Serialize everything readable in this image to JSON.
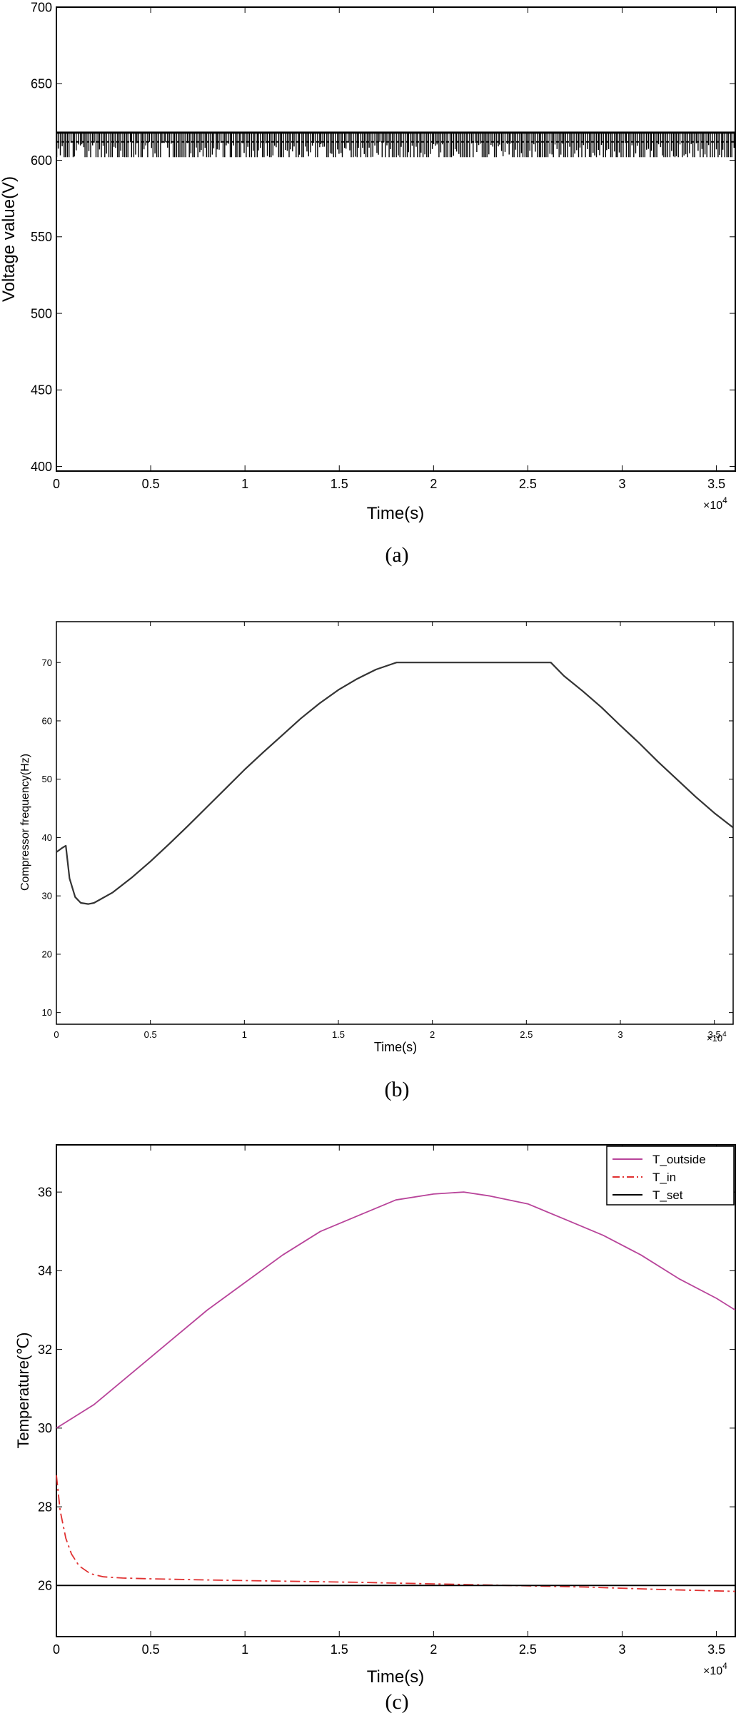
{
  "chart_data": [
    {
      "type": "line",
      "panel": "(a)",
      "caption": "(a)",
      "xlabel": "Time(s)",
      "ylabel": "Voltage value(V)",
      "x_exponent": "×10",
      "x_exponent_power": "4",
      "xlim": [
        0,
        3.6
      ],
      "ylim": [
        397,
        700
      ],
      "xticks": [
        0,
        0.5,
        1,
        1.5,
        2,
        2.5,
        3,
        3.5
      ],
      "xtick_labels": [
        "0",
        "0.5",
        "1",
        "1.5",
        "2",
        "2.5",
        "3",
        "3.5"
      ],
      "yticks": [
        400,
        450,
        500,
        550,
        600,
        650,
        700
      ],
      "ytick_labels": [
        "400",
        "450",
        "500",
        "550",
        "600",
        "650",
        "700"
      ],
      "grid": false,
      "series": [
        {
          "values_note": "",
          "x": [
            0,
            3.6
          ],
          "y_high": 618,
          "y_dashline": 612,
          "y_low": 602,
          "spike_density": 380,
          "color": "#000000"
        }
      ]
    },
    {
      "type": "line",
      "panel": "(b)",
      "caption": "(b)",
      "xlabel": "Time(s)",
      "ylabel": "Compressor frequency(Hz)",
      "x_exponent": "×10",
      "x_exponent_power": "4",
      "xlim": [
        0,
        3.6
      ],
      "ylim": [
        8,
        77
      ],
      "xticks": [
        0,
        0.5,
        1,
        1.5,
        2,
        2.5,
        3,
        3.5
      ],
      "xtick_labels": [
        "0",
        "0.5",
        "1",
        "1.5",
        "2",
        "2.5",
        "3",
        "3.5"
      ],
      "yticks": [
        10,
        20,
        30,
        40,
        50,
        60,
        70
      ],
      "ytick_labels": [
        "10",
        "20",
        "30",
        "40",
        "50",
        "60",
        "70"
      ],
      "grid": false,
      "series": [
        {
          "color": "#333333",
          "x": [
            0,
            0.03,
            0.05,
            0.07,
            0.1,
            0.13,
            0.17,
            0.2,
            0.3,
            0.4,
            0.5,
            0.6,
            0.7,
            0.8,
            0.9,
            1.0,
            1.1,
            1.2,
            1.3,
            1.4,
            1.5,
            1.6,
            1.7,
            1.8,
            1.81,
            2.0,
            2.2,
            2.4,
            2.63,
            2.7,
            2.8,
            2.9,
            3.0,
            3.1,
            3.2,
            3.3,
            3.4,
            3.5,
            3.6
          ],
          "y": [
            37.5,
            38.2,
            38.6,
            33.0,
            29.8,
            28.8,
            28.6,
            28.8,
            30.6,
            33.1,
            35.9,
            38.9,
            42.0,
            45.2,
            48.4,
            51.6,
            54.6,
            57.5,
            60.4,
            63.0,
            65.3,
            67.2,
            68.8,
            69.9,
            70.0,
            70.0,
            70.0,
            70.0,
            70.0,
            67.7,
            65.1,
            62.3,
            59.2,
            56.2,
            53.0,
            50.0,
            47.0,
            44.2,
            41.7
          ]
        }
      ]
    },
    {
      "type": "line",
      "panel": "(c)",
      "caption": "(c)",
      "xlabel": "Time(s)",
      "ylabel": "Temperature(℃)",
      "x_exponent": "×10",
      "x_exponent_power": "4",
      "xlim": [
        0,
        3.6
      ],
      "ylim": [
        24.7,
        37.2
      ],
      "xticks": [
        0,
        0.5,
        1,
        1.5,
        2,
        2.5,
        3,
        3.5
      ],
      "xtick_labels": [
        "0",
        "0.5",
        "1",
        "1.5",
        "2",
        "2.5",
        "3",
        "3.5"
      ],
      "yticks": [
        26,
        28,
        30,
        32,
        34,
        36
      ],
      "ytick_labels": [
        "26",
        "28",
        "30",
        "32",
        "34",
        "36"
      ],
      "grid": false,
      "legend": "top-right",
      "series": [
        {
          "name": "T_outside",
          "color": "#b8449a",
          "style": "solid",
          "x": [
            0,
            0.2,
            0.4,
            0.6,
            0.8,
            1.0,
            1.2,
            1.4,
            1.6,
            1.8,
            2.0,
            2.16,
            2.3,
            2.5,
            2.7,
            2.9,
            3.1,
            3.3,
            3.5,
            3.6
          ],
          "y": [
            30.0,
            30.6,
            31.4,
            32.2,
            33.0,
            33.7,
            34.4,
            35.0,
            35.4,
            35.8,
            35.95,
            36.0,
            35.9,
            35.7,
            35.3,
            34.9,
            34.4,
            33.8,
            33.3,
            33.0
          ]
        },
        {
          "name": "T_in",
          "color": "#e03030",
          "style": "dashdot",
          "x": [
            0,
            0.02,
            0.05,
            0.08,
            0.12,
            0.18,
            0.25,
            0.35,
            0.5,
            0.8,
            1.2,
            1.6,
            2.0,
            2.4,
            2.8,
            3.2,
            3.6
          ],
          "y": [
            28.8,
            27.9,
            27.2,
            26.8,
            26.5,
            26.3,
            26.22,
            26.19,
            26.17,
            26.14,
            26.11,
            26.08,
            26.04,
            26.0,
            25.96,
            25.9,
            25.85
          ]
        },
        {
          "name": "T_set",
          "color": "#000000",
          "style": "solid",
          "x": [
            0,
            3.6
          ],
          "y": [
            26,
            26
          ]
        }
      ]
    }
  ]
}
